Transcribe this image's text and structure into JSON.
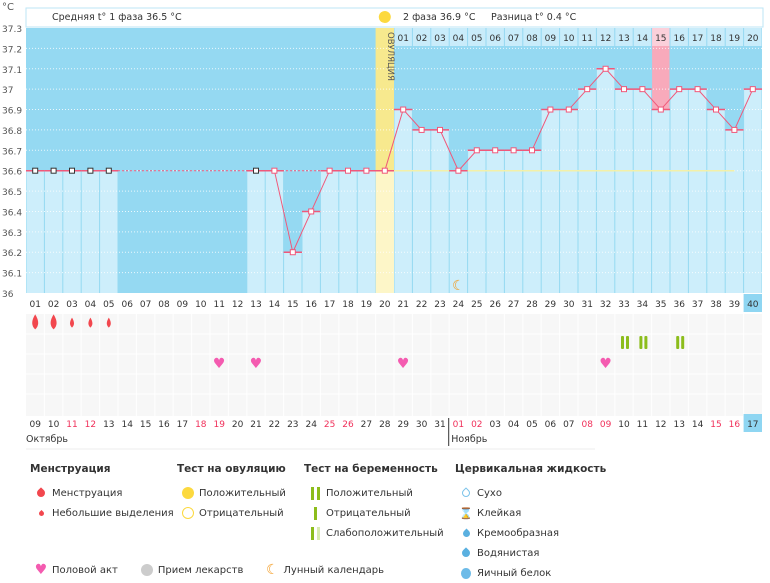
{
  "header": {
    "unit": "°C",
    "phase1": "Средняя t° 1 фаза 36.5 °C",
    "phase2": "2 фаза 36.9 °C",
    "diff": "Разница t° 0.4 °C",
    "ovulation_label": "ОВУЛЯЦИЯ"
  },
  "chart_data": {
    "type": "line",
    "ylim": [
      36,
      37.3
    ],
    "y_ticks": [
      "36",
      "36.1",
      "36.2",
      "36.3",
      "36.4",
      "36.5",
      "36.6",
      "36.7",
      "36.8",
      "36.9",
      "37",
      "37.1",
      "37.2",
      "37.3"
    ],
    "cycle_days": [
      "01",
      "02",
      "03",
      "04",
      "05",
      "06",
      "07",
      "08",
      "09",
      "10",
      "11",
      "12",
      "13",
      "14",
      "15",
      "16",
      "17",
      "18",
      "19",
      "20",
      "21",
      "22",
      "23",
      "24",
      "25",
      "26",
      "27",
      "28",
      "29",
      "30",
      "31",
      "32",
      "33",
      "34",
      "35",
      "36",
      "37",
      "38",
      "39",
      "40"
    ],
    "temperatures": [
      36.6,
      36.6,
      36.6,
      36.6,
      36.6,
      null,
      null,
      null,
      null,
      null,
      null,
      null,
      36.6,
      36.6,
      36.2,
      36.4,
      36.6,
      36.6,
      36.6,
      36.6,
      36.9,
      36.8,
      36.8,
      36.6,
      36.7,
      36.7,
      36.7,
      36.7,
      36.9,
      36.9,
      37.0,
      37.1,
      37.0,
      37.0,
      36.9,
      37.0,
      37.0,
      36.9,
      36.8,
      37.0
    ],
    "phase2_days": [
      "01",
      "02",
      "03",
      "04",
      "05",
      "06",
      "07",
      "08",
      "09",
      "10",
      "11",
      "12",
      "13",
      "14",
      "15",
      "16",
      "17",
      "18",
      "19",
      "20"
    ],
    "highlighted_phase2_day": "15",
    "ovulation_day": 20,
    "coverline": 36.6,
    "current_day": 40,
    "dates": [
      "09",
      "10",
      "11",
      "12",
      "13",
      "14",
      "15",
      "16",
      "17",
      "18",
      "19",
      "20",
      "21",
      "22",
      "23",
      "24",
      "25",
      "26",
      "27",
      "28",
      "29",
      "30",
      "31",
      "01",
      "02",
      "03",
      "04",
      "05",
      "06",
      "07",
      "08",
      "09",
      "10",
      "11",
      "12",
      "13",
      "14",
      "15",
      "16",
      "17"
    ],
    "weekend_dates_idx": [
      2,
      3,
      9,
      10,
      16,
      17,
      23,
      24,
      30,
      31,
      37,
      38
    ],
    "months": [
      "Октябрь",
      "Ноябрь"
    ],
    "menstruation": {
      "heavy": [
        1,
        2
      ],
      "light": [
        3,
        4,
        5
      ]
    },
    "pregnancy_test_positive": [
      33,
      34,
      36
    ],
    "intercourse": [
      11,
      13,
      21,
      32
    ],
    "moon_day": 24
  },
  "colors": {
    "bar": "#cdeefb",
    "above": "#95d9f2",
    "line": "#f0587a",
    "ovulation": "#f7e98e",
    "highlight": "#f8aabb",
    "weekend": "#f0305a",
    "heart": "#f45bb0",
    "test": "#8cbd1c",
    "drop": "#f2474e",
    "moon": "#f39a1e"
  },
  "legend": {
    "menstruation": {
      "title": "Менструация",
      "items": [
        "Менструация",
        "Небольшие выделения"
      ]
    },
    "ovulation_test": {
      "title": "Тест на овуляцию",
      "items": [
        "Положительный",
        "Отрицательный"
      ]
    },
    "pregnancy_test": {
      "title": "Тест на беременность",
      "items": [
        "Положительный",
        "Отрицательный",
        "Слабоположительный"
      ]
    },
    "cervical": {
      "title": "Цервикальная жидкость",
      "items": [
        "Сухо",
        "Клейкая",
        "Кремообразная",
        "Водянистая",
        "Яичный белок"
      ]
    },
    "other": [
      "Половой акт",
      "Прием лекарств",
      "Лунный календарь"
    ]
  }
}
